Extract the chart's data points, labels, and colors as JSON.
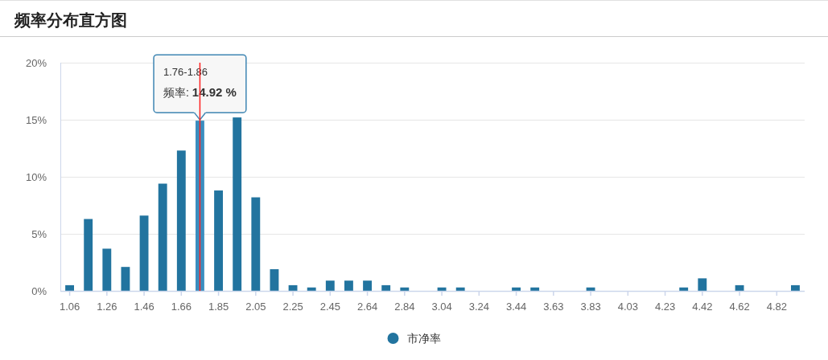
{
  "chart_data": {
    "type": "bar",
    "title": "频率分布直方图",
    "categories": [
      "1.06",
      null,
      "1.26",
      null,
      "1.46",
      null,
      "1.66",
      null,
      "1.85",
      null,
      "2.05",
      null,
      "2.25",
      null,
      "2.45",
      null,
      "2.64",
      null,
      "2.84",
      null,
      "3.04",
      null,
      "3.24",
      null,
      "3.44",
      null,
      "3.63",
      null,
      "3.83",
      null,
      "4.03",
      null,
      "4.23",
      null,
      "4.42",
      null,
      "4.62",
      null,
      "4.82",
      null
    ],
    "series": [
      {
        "name": "市净率",
        "color": "#22749f",
        "colors": [
          "#22749f",
          "#22749f",
          "#22749f",
          "#22749f",
          "#22749f",
          "#22749f",
          "#22749f",
          "#3a8dbf",
          "#22749f",
          "#22749f",
          "#22749f",
          "#22749f",
          "#22749f",
          "#22749f",
          "#22749f",
          "#22749f",
          "#22749f",
          "#22749f",
          "#22749f",
          null,
          "#22749f",
          "#22749f",
          null,
          null,
          "#22749f",
          "#22749f",
          null,
          null,
          "#22749f",
          null,
          null,
          null,
          null,
          "#22749f",
          "#22749f",
          null,
          "#22749f",
          null,
          null,
          "#22749f"
        ],
        "values": [
          0.5,
          6.3,
          3.7,
          2.1,
          6.6,
          9.4,
          12.3,
          14.92,
          8.8,
          15.2,
          8.2,
          1.9,
          0.5,
          0.3,
          0.9,
          0.9,
          0.9,
          0.5,
          0.3,
          0,
          0.3,
          0.3,
          0,
          0,
          0.3,
          0.3,
          0,
          0,
          0.3,
          0,
          0,
          0,
          0,
          0.3,
          1.1,
          0,
          0.5,
          0,
          0,
          0.5
        ]
      }
    ],
    "ylim": [
      0,
      20
    ],
    "yticks": [
      {
        "value": 0,
        "label": "0%"
      },
      {
        "value": 5,
        "label": "5%"
      },
      {
        "value": 10,
        "label": "10%"
      },
      {
        "value": 15,
        "label": "15%"
      },
      {
        "value": 20,
        "label": "20%"
      }
    ],
    "grid": "y",
    "legend": "bottom",
    "annotations": [
      {
        "text": "1.76-1.86\n频率: 14.92 %",
        "y": 14.92
      }
    ]
  }
}
